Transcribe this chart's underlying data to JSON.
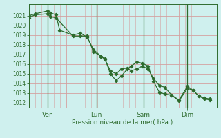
{
  "bg_color": "#cff0ee",
  "grid_color_h": "#d4a0a0",
  "grid_color_v": "#d4a0a0",
  "line_color": "#2d6b2d",
  "marker_color": "#2d6b2d",
  "xlabel": "Pression niveau de la mer( hPa )",
  "ylim": [
    1011.5,
    1022.2
  ],
  "yticks": [
    1012,
    1013,
    1014,
    1015,
    1016,
    1017,
    1018,
    1019,
    1020,
    1021
  ],
  "xtick_labels": [
    "Ven",
    "Lun",
    "Sam",
    "Dim"
  ],
  "xtick_positions": [
    0.1,
    0.36,
    0.61,
    0.845
  ],
  "vline_positions": [
    0.1,
    0.36,
    0.61,
    0.845
  ],
  "xlim": [
    0.0,
    1.0
  ],
  "series1_x": [
    0.0,
    0.035,
    0.1,
    0.115,
    0.145,
    0.165,
    0.235,
    0.275,
    0.31,
    0.345,
    0.385,
    0.405,
    0.435,
    0.465,
    0.495,
    0.525,
    0.545,
    0.575,
    0.605,
    0.635,
    0.665,
    0.695,
    0.725,
    0.76,
    0.8,
    0.845,
    0.875,
    0.905,
    0.935,
    0.965
  ],
  "series1_y": [
    1021.0,
    1021.2,
    1021.5,
    1021.3,
    1021.1,
    1019.5,
    1019.0,
    1019.2,
    1018.8,
    1017.5,
    1016.8,
    1016.6,
    1015.0,
    1014.3,
    1014.8,
    1015.5,
    1015.8,
    1016.2,
    1016.1,
    1015.8,
    1014.2,
    1013.1,
    1012.9,
    1012.8,
    1012.2,
    1013.5,
    1013.3,
    1012.7,
    1012.5,
    1012.4
  ],
  "series2_x": [
    0.0,
    0.035,
    0.1,
    0.115,
    0.145,
    0.235,
    0.275,
    0.31,
    0.345,
    0.385,
    0.405,
    0.435,
    0.465,
    0.495,
    0.525,
    0.545,
    0.575,
    0.605,
    0.635,
    0.665,
    0.695,
    0.725,
    0.76,
    0.8,
    0.845,
    0.875,
    0.905,
    0.935,
    0.965
  ],
  "series2_y": [
    1020.8,
    1021.1,
    1021.2,
    1020.9,
    1020.8,
    1018.9,
    1018.9,
    1018.9,
    1017.3,
    1016.8,
    1016.5,
    1015.3,
    1015.0,
    1015.5,
    1015.6,
    1015.3,
    1015.5,
    1015.8,
    1015.5,
    1014.5,
    1013.8,
    1013.6,
    1012.8,
    1012.3,
    1013.7,
    1013.3,
    1012.7,
    1012.4,
    1012.3
  ]
}
